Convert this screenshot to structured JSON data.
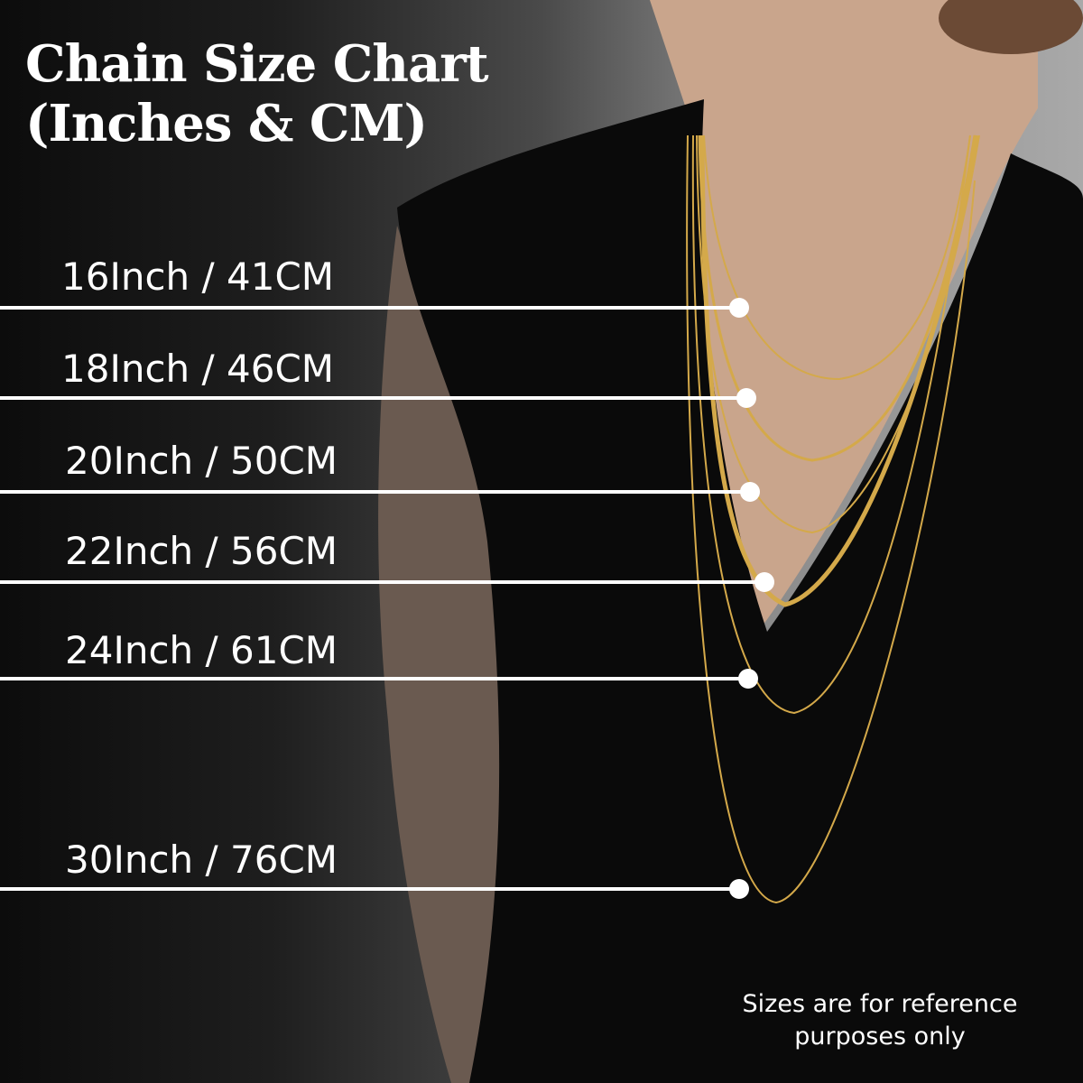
{
  "title_line1": "Chain Size Chart",
  "title_line2": "(Inches & CM)",
  "sizes": [
    {
      "label": "16Inch / 41CM",
      "inches": 16,
      "cm": 41
    },
    {
      "label": "18Inch / 46CM",
      "inches": 18,
      "cm": 46
    },
    {
      "label": "20Inch / 50CM",
      "inches": 20,
      "cm": 50
    },
    {
      "label": "22Inch / 56CM",
      "inches": 22,
      "cm": 56
    },
    {
      "label": "24Inch / 61CM",
      "inches": 24,
      "cm": 61
    },
    {
      "label": "30Inch / 76CM",
      "inches": 30,
      "cm": 76
    }
  ],
  "note_line1": "Sizes are for reference",
  "note_line2": "purposes only",
  "colors": {
    "chain": "#d4a94a",
    "dress": "#0a0a0a",
    "skin": "#c9a58c",
    "marker": "#ffffff"
  }
}
